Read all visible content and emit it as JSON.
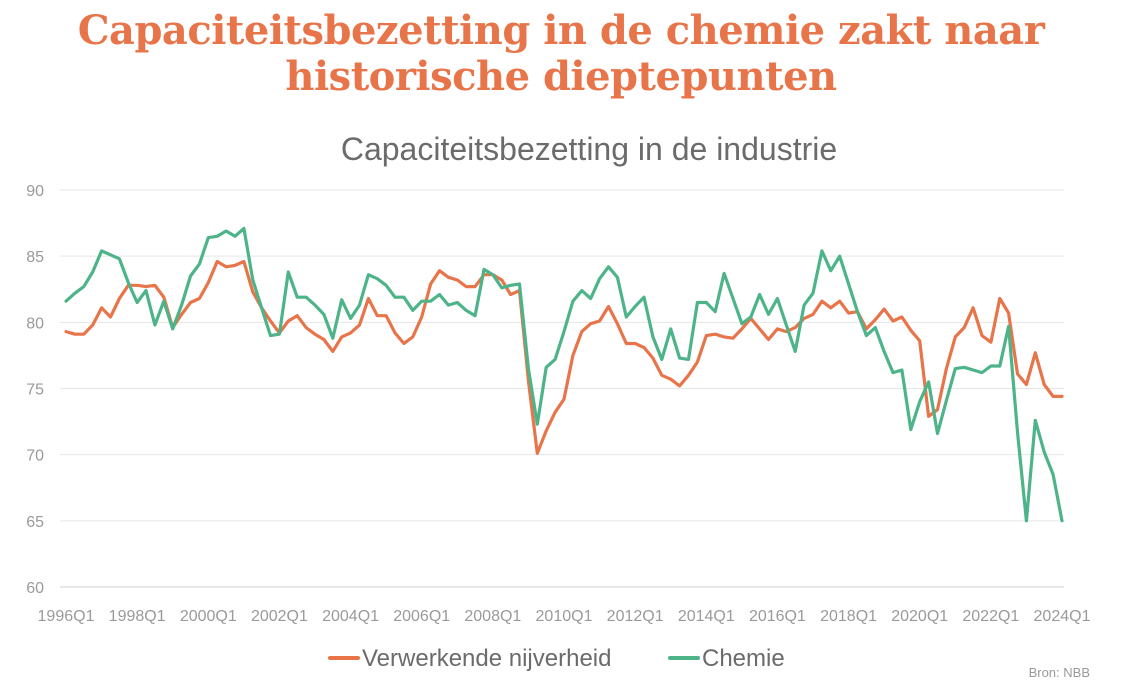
{
  "headline": [
    "Capaciteitsbezetting in de chemie zakt naar",
    "historische dieptepunten"
  ],
  "source": "Bron: NBB",
  "colors": {
    "headline": "#e8744a",
    "verwerkend": "#e8744a",
    "chemie": "#4db48a",
    "grid": "#e6e6e6",
    "tick": "#9a9a9a"
  },
  "chart_data": {
    "type": "line",
    "title": "Capaciteitsbezetting in de industrie",
    "xlabel": "",
    "ylabel": "",
    "ylim": [
      60,
      90
    ],
    "yticks": [
      60,
      65,
      70,
      75,
      80,
      85,
      90
    ],
    "x_start": "1996Q1",
    "x_end": "2024Q1",
    "xticks": [
      "1996Q1",
      "1998Q1",
      "2000Q1",
      "2002Q1",
      "2004Q1",
      "2006Q1",
      "2008Q1",
      "2010Q1",
      "2012Q1",
      "2014Q1",
      "2016Q1",
      "2018Q1",
      "2020Q1",
      "2022Q1",
      "2024Q1"
    ],
    "grid": "horizontal",
    "legend_position": "bottom",
    "series": [
      {
        "name": "Verwerkende nijverheid",
        "color": "#e8744a",
        "values": [
          79.3,
          79.1,
          79.1,
          79.8,
          81.1,
          80.4,
          81.8,
          82.8,
          82.8,
          82.7,
          82.8,
          81.9,
          79.6,
          80.6,
          81.5,
          81.8,
          83.0,
          84.6,
          84.2,
          84.3,
          84.6,
          82.3,
          81.1,
          80.1,
          79.2,
          80.1,
          80.5,
          79.6,
          79.1,
          78.7,
          77.8,
          78.9,
          79.2,
          79.8,
          81.8,
          80.5,
          80.5,
          79.2,
          78.4,
          78.9,
          80.4,
          82.9,
          83.9,
          83.4,
          83.2,
          82.7,
          82.7,
          83.6,
          83.6,
          83.2,
          82.1,
          82.4,
          75.6,
          70.1,
          71.8,
          73.2,
          74.2,
          77.5,
          79.3,
          79.9,
          80.1,
          81.2,
          79.9,
          78.4,
          78.4,
          78.1,
          77.3,
          76.0,
          75.7,
          75.2,
          76.0,
          77.0,
          79.0,
          79.1,
          78.9,
          78.8,
          79.5,
          80.3,
          79.5,
          78.7,
          79.5,
          79.3,
          79.6,
          80.3,
          80.6,
          81.6,
          81.1,
          81.6,
          80.7,
          80.8,
          79.5,
          80.2,
          81.0,
          80.1,
          80.4,
          79.4,
          78.6,
          72.9,
          73.4,
          76.5,
          78.9,
          79.6,
          81.1,
          79.0,
          78.5,
          81.8,
          80.7,
          76.1,
          75.3,
          77.7,
          75.3,
          74.4,
          74.4
        ]
      },
      {
        "name": "Chemie",
        "color": "#4db48a",
        "values": [
          81.6,
          82.2,
          82.7,
          83.8,
          85.4,
          85.1,
          84.8,
          83.0,
          81.5,
          82.4,
          79.8,
          81.6,
          79.5,
          81.3,
          83.5,
          84.4,
          86.4,
          86.5,
          86.9,
          86.5,
          87.1,
          83.2,
          81.1,
          79.0,
          79.1,
          83.8,
          81.9,
          81.9,
          81.3,
          80.6,
          78.8,
          81.7,
          80.3,
          81.3,
          83.6,
          83.3,
          82.8,
          81.9,
          81.9,
          80.9,
          81.6,
          81.6,
          82.1,
          81.3,
          81.5,
          80.9,
          80.5,
          84.0,
          83.6,
          82.6,
          82.8,
          82.9,
          76.5,
          72.3,
          76.6,
          77.2,
          79.3,
          81.6,
          82.4,
          81.8,
          83.3,
          84.2,
          83.4,
          80.4,
          81.2,
          81.9,
          78.9,
          77.2,
          79.5,
          77.3,
          77.2,
          81.5,
          81.5,
          80.8,
          83.7,
          81.8,
          79.9,
          80.4,
          82.1,
          80.6,
          81.8,
          79.8,
          77.8,
          81.3,
          82.2,
          85.4,
          83.9,
          85.0,
          82.9,
          80.8,
          79.0,
          79.6,
          77.8,
          76.2,
          76.4,
          71.9,
          74.0,
          75.5,
          71.6,
          74.1,
          76.5,
          76.6,
          76.4,
          76.2,
          76.7,
          76.7,
          79.7,
          71.7,
          65.0,
          72.6,
          70.2,
          68.5,
          65.0
        ]
      }
    ]
  }
}
